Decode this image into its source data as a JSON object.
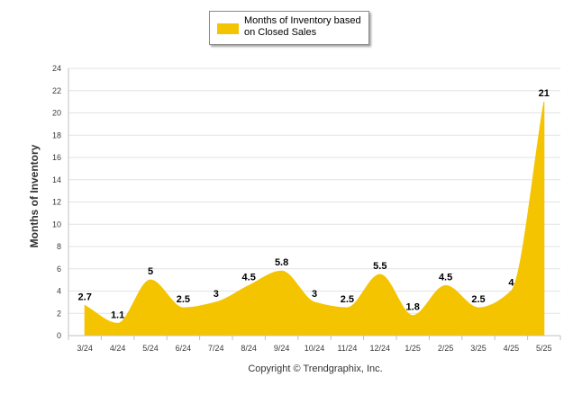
{
  "chart_data": {
    "type": "area",
    "categories": [
      "3/24",
      "4/24",
      "5/24",
      "6/24",
      "7/24",
      "8/24",
      "9/24",
      "10/24",
      "11/24",
      "12/24",
      "1/25",
      "2/25",
      "3/25",
      "4/25",
      "5/25"
    ],
    "series": [
      {
        "name": "Months of Inventory based on Closed Sales",
        "values": [
          2.7,
          1.1,
          5,
          2.5,
          3,
          4.5,
          5.8,
          3,
          2.5,
          5.5,
          1.8,
          4.5,
          2.5,
          4,
          21
        ],
        "data_labels": [
          "2.7",
          "1.1",
          "5",
          "2.5",
          "3",
          "4.5",
          "5.8",
          "3",
          "2.5",
          "5.5",
          "1.8",
          "4.5",
          "2.5",
          "4",
          "21"
        ]
      }
    ],
    "ylabel": "Months of Inventory",
    "xlabel": "",
    "ylim": [
      0,
      24
    ],
    "yticks": [
      "0",
      "2",
      "4",
      "6",
      "8",
      "10",
      "12",
      "14",
      "16",
      "18",
      "20",
      "22",
      "24"
    ],
    "grid": true,
    "legend_position": "top-center",
    "colors": {
      "series": "#f5c400",
      "grid": "#e3e3e3",
      "axis": "#c0c0c0"
    }
  },
  "legend": {
    "label": "Months of Inventory based on Closed Sales"
  },
  "footer": {
    "copyright": "Copyright © Trendgraphix, Inc."
  }
}
